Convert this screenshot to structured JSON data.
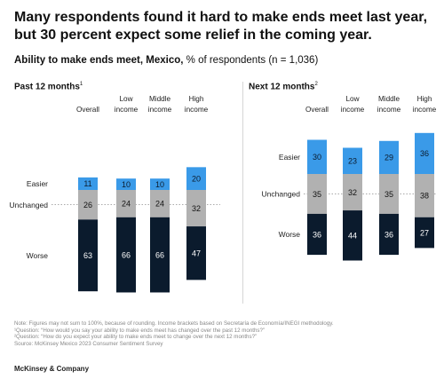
{
  "header": {
    "title_line1": "Many respondents found it hard to make ends meet last year,",
    "title_line2": "but 30 percent expect some relief in the coming year.",
    "subtitle_bold": "Ability to make ends meet, Mexico,",
    "subtitle_rest": " % of respondents (n = 1,036)"
  },
  "panels": {
    "left_title": "Past 12 months",
    "left_sup": "1",
    "right_title": "Next 12 months",
    "right_sup": "2"
  },
  "chart_data": [
    {
      "type": "bar",
      "stacked": true,
      "title": "Past 12 months",
      "categories": [
        "Overall",
        "Low income",
        "Middle income",
        "High income"
      ],
      "series": [
        {
          "name": "Easier",
          "values": [
            11,
            10,
            10,
            20
          ],
          "color": "#3a9ae8"
        },
        {
          "name": "Unchanged",
          "values": [
            26,
            24,
            24,
            32
          ],
          "color": "#b1b1b1"
        },
        {
          "name": "Worse",
          "values": [
            63,
            66,
            66,
            47
          ],
          "color": "#0b1b2d"
        }
      ]
    },
    {
      "type": "bar",
      "stacked": true,
      "title": "Next 12 months",
      "categories": [
        "Overall",
        "Low income",
        "Middle income",
        "High income"
      ],
      "series": [
        {
          "name": "Easier",
          "values": [
            30,
            23,
            29,
            36
          ],
          "color": "#3a9ae8"
        },
        {
          "name": "Unchanged",
          "values": [
            35,
            32,
            35,
            38
          ],
          "color": "#b1b1b1"
        },
        {
          "name": "Worse",
          "values": [
            36,
            44,
            36,
            27
          ],
          "color": "#0b1b2d"
        }
      ]
    }
  ],
  "footnotes": {
    "note": "Note: Figures may not sum to 100%, because of rounding. Income brackets based on Secretaría de Economía/INEGI methodology.",
    "q1": "¹Question: “How would you say your ability to make ends meet has changed over the past 12 months?”",
    "q2": "²Question: “How do you expect your ability to make ends meet to change over the next 12 months?”",
    "source": "Source: McKinsey Mexico 2023 Consumer Sentiment Survey"
  },
  "brand": "McKinsey & Company"
}
